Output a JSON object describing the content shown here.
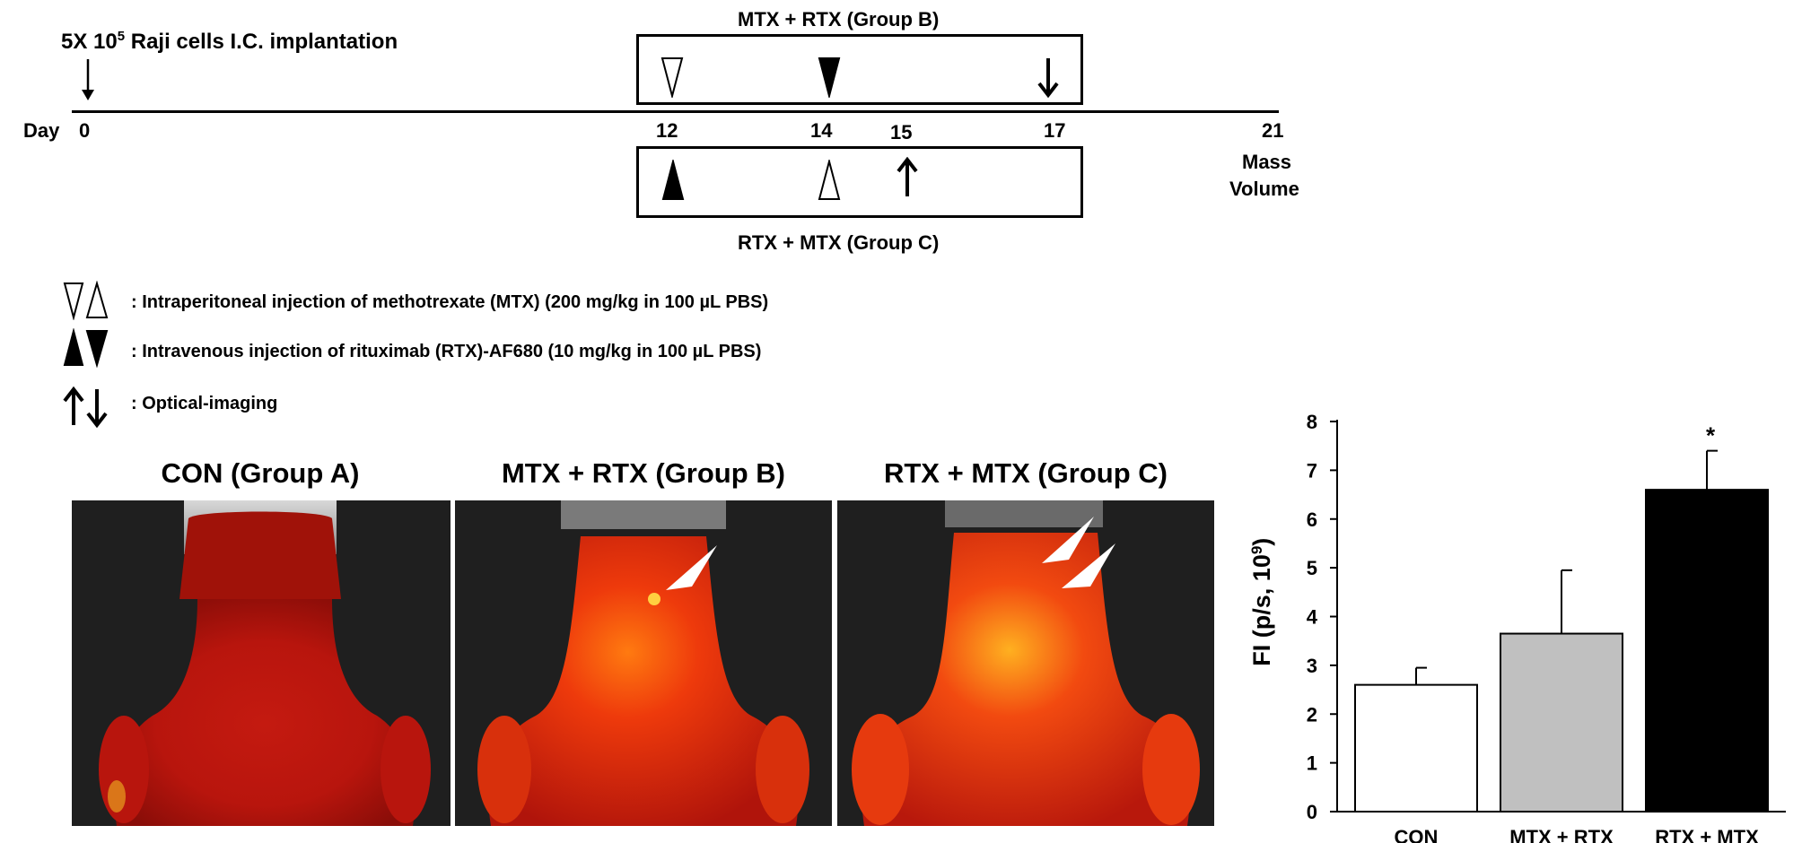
{
  "timeline": {
    "implant_label": "5X 10",
    "implant_exp": "5",
    "implant_rest": " Raji cells I.C. implantation",
    "day_label": "Day",
    "days": [
      "0",
      "12",
      "14",
      "15",
      "17",
      "21"
    ],
    "end_label_1": "Mass",
    "end_label_2": "Volume",
    "group_b_label": "MTX + RTX (Group B)",
    "group_c_label": "RTX + MTX (Group C)"
  },
  "legend": {
    "mtx": ": Intraperitoneal injection of methotrexate (MTX)  (200 mg/kg in 100 µL PBS)",
    "rtx": ": Intravenous injection of rituximab (RTX)-AF680 (10 mg/kg in 100 µL PBS)",
    "imaging": ": Optical-imaging"
  },
  "panels": [
    {
      "title": "CON (Group A)"
    },
    {
      "title": "MTX + RTX (Group B)"
    },
    {
      "title": "RTX + MTX (Group C)"
    }
  ],
  "chart_data": {
    "type": "bar",
    "categories": [
      "CON",
      "MTX + RTX",
      "RTX + MTX"
    ],
    "values": [
      2.6,
      3.65,
      6.6
    ],
    "errors": [
      0.35,
      1.3,
      0.8
    ],
    "colors": [
      "#ffffff",
      "#c0c0c0",
      "#000000"
    ],
    "ylabel": "FI (p/s, 10",
    "ylabel_exp": "9",
    "ylabel_end": ")",
    "ylim": [
      0,
      8
    ],
    "yticks": [
      "0",
      "1",
      "2",
      "3",
      "4",
      "5",
      "6",
      "7",
      "8"
    ],
    "annotation": "*"
  }
}
